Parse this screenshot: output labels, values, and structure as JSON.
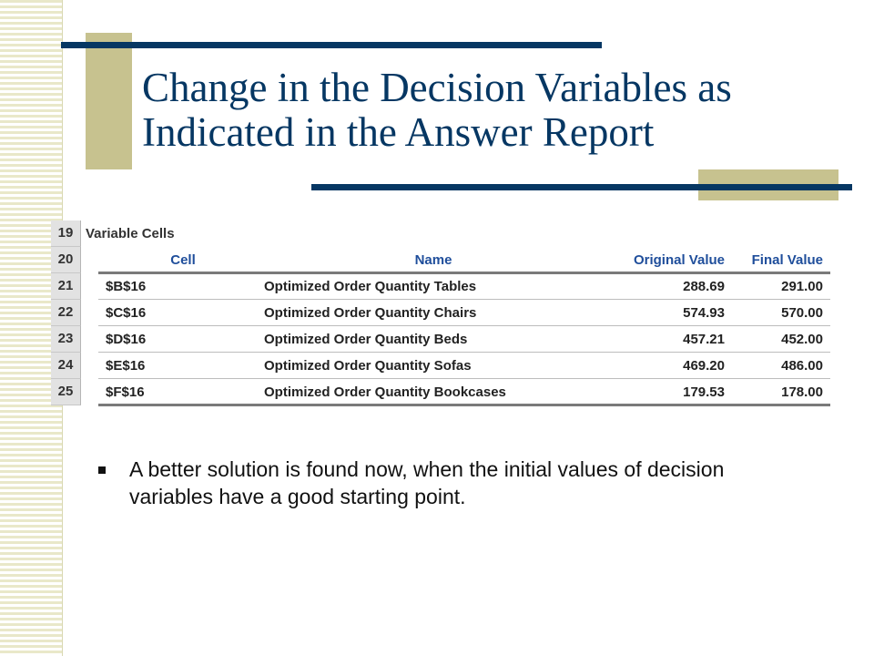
{
  "slide": {
    "title": "Change in the Decision Variables as Indicated in the Answer Report"
  },
  "sheet": {
    "section_row": "19",
    "section_title": "Variable Cells",
    "header_row": "20",
    "headers": {
      "cell": "Cell",
      "name": "Name",
      "original_value": "Original Value",
      "final_value": "Final Value"
    },
    "rows": [
      {
        "row": "21",
        "cell": "$B$16",
        "name": "Optimized Order Quantity Tables",
        "original": "288.69",
        "final": "291.00"
      },
      {
        "row": "22",
        "cell": "$C$16",
        "name": "Optimized Order Quantity Chairs",
        "original": "574.93",
        "final": "570.00"
      },
      {
        "row": "23",
        "cell": "$D$16",
        "name": "Optimized Order Quantity Beds",
        "original": "457.21",
        "final": "452.00"
      },
      {
        "row": "24",
        "cell": "$E$16",
        "name": "Optimized Order Quantity Sofas",
        "original": "469.20",
        "final": "486.00"
      },
      {
        "row": "25",
        "cell": "$F$16",
        "name": "Optimized Order Quantity Bookcases",
        "original": "179.53",
        "final": "178.00"
      }
    ]
  },
  "bullets": [
    "A better solution is found now, when the initial values of decision variables have a good starting point."
  ],
  "colors": {
    "accent_navy": "#063763",
    "accent_olive": "#c7c28f",
    "header_blue": "#1f4e9b"
  }
}
